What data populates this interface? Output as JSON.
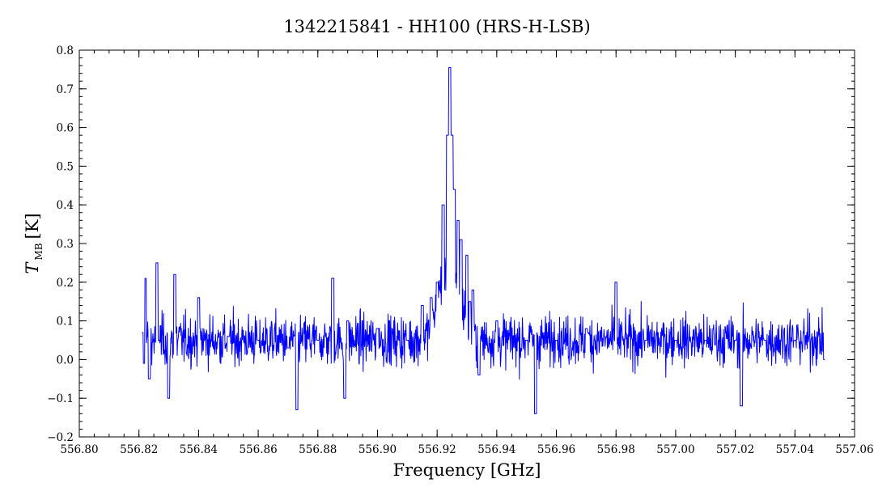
{
  "chart_data": {
    "type": "line",
    "title": "1342215841 - HH100 (HRS-H-LSB)",
    "xlabel": "Frequency [GHz]",
    "ylabel": {
      "symbol": "T",
      "subscript": "MB",
      "unit": "[K]"
    },
    "xlim": [
      556.8,
      557.06
    ],
    "ylim": [
      -0.2,
      0.8
    ],
    "xticks": [
      "556.80",
      "556.82",
      "556.84",
      "556.86",
      "556.88",
      "556.90",
      "556.92",
      "556.94",
      "556.96",
      "556.98",
      "557.00",
      "557.02",
      "557.04",
      "557.06"
    ],
    "yticks": [
      "-0.2",
      "-0.1",
      "0.0",
      "0.1",
      "0.2",
      "0.3",
      "0.4",
      "0.5",
      "0.6",
      "0.7",
      "0.8"
    ],
    "grid": false,
    "color": "#0000ff",
    "series": [
      {
        "x_start": 556.821,
        "x_end": 557.05,
        "baseline": 0.05,
        "noise_rms": 0.06,
        "points_approx": [
          [
            556.821,
            0.07
          ],
          [
            556.8215,
            -0.01
          ],
          [
            556.822,
            0.21
          ],
          [
            556.8235,
            -0.05
          ],
          [
            556.826,
            0.25
          ],
          [
            556.8265,
            0.05
          ],
          [
            556.83,
            -0.1
          ],
          [
            556.832,
            0.22
          ],
          [
            556.84,
            0.16
          ],
          [
            556.85,
            0.06
          ],
          [
            556.86,
            0.05
          ],
          [
            556.87,
            0.03
          ],
          [
            556.873,
            -0.13
          ],
          [
            556.88,
            0.05
          ],
          [
            556.885,
            0.21
          ],
          [
            556.889,
            -0.1
          ],
          [
            556.89,
            0.1
          ],
          [
            556.9,
            0.08
          ],
          [
            556.91,
            0.05
          ],
          [
            556.915,
            0.14
          ],
          [
            556.918,
            0.16
          ],
          [
            556.92,
            0.2
          ],
          [
            556.922,
            0.4
          ],
          [
            556.9235,
            0.58
          ],
          [
            556.9242,
            0.755
          ],
          [
            556.925,
            0.58
          ],
          [
            556.9258,
            0.44
          ],
          [
            556.927,
            0.36
          ],
          [
            556.928,
            0.31
          ],
          [
            556.93,
            0.27
          ],
          [
            556.931,
            0.15
          ],
          [
            556.932,
            0.18
          ],
          [
            556.934,
            -0.04
          ],
          [
            556.94,
            0.1
          ],
          [
            556.95,
            0.05
          ],
          [
            556.953,
            -0.14
          ],
          [
            556.96,
            0.05
          ],
          [
            556.97,
            0.08
          ],
          [
            556.98,
            0.2
          ],
          [
            556.99,
            0.05
          ],
          [
            557.0,
            0.05
          ],
          [
            557.01,
            0.05
          ],
          [
            557.02,
            0.05
          ],
          [
            557.022,
            -0.12
          ],
          [
            557.03,
            0.05
          ],
          [
            557.04,
            0.05
          ],
          [
            557.05,
            0.0
          ]
        ]
      }
    ]
  }
}
